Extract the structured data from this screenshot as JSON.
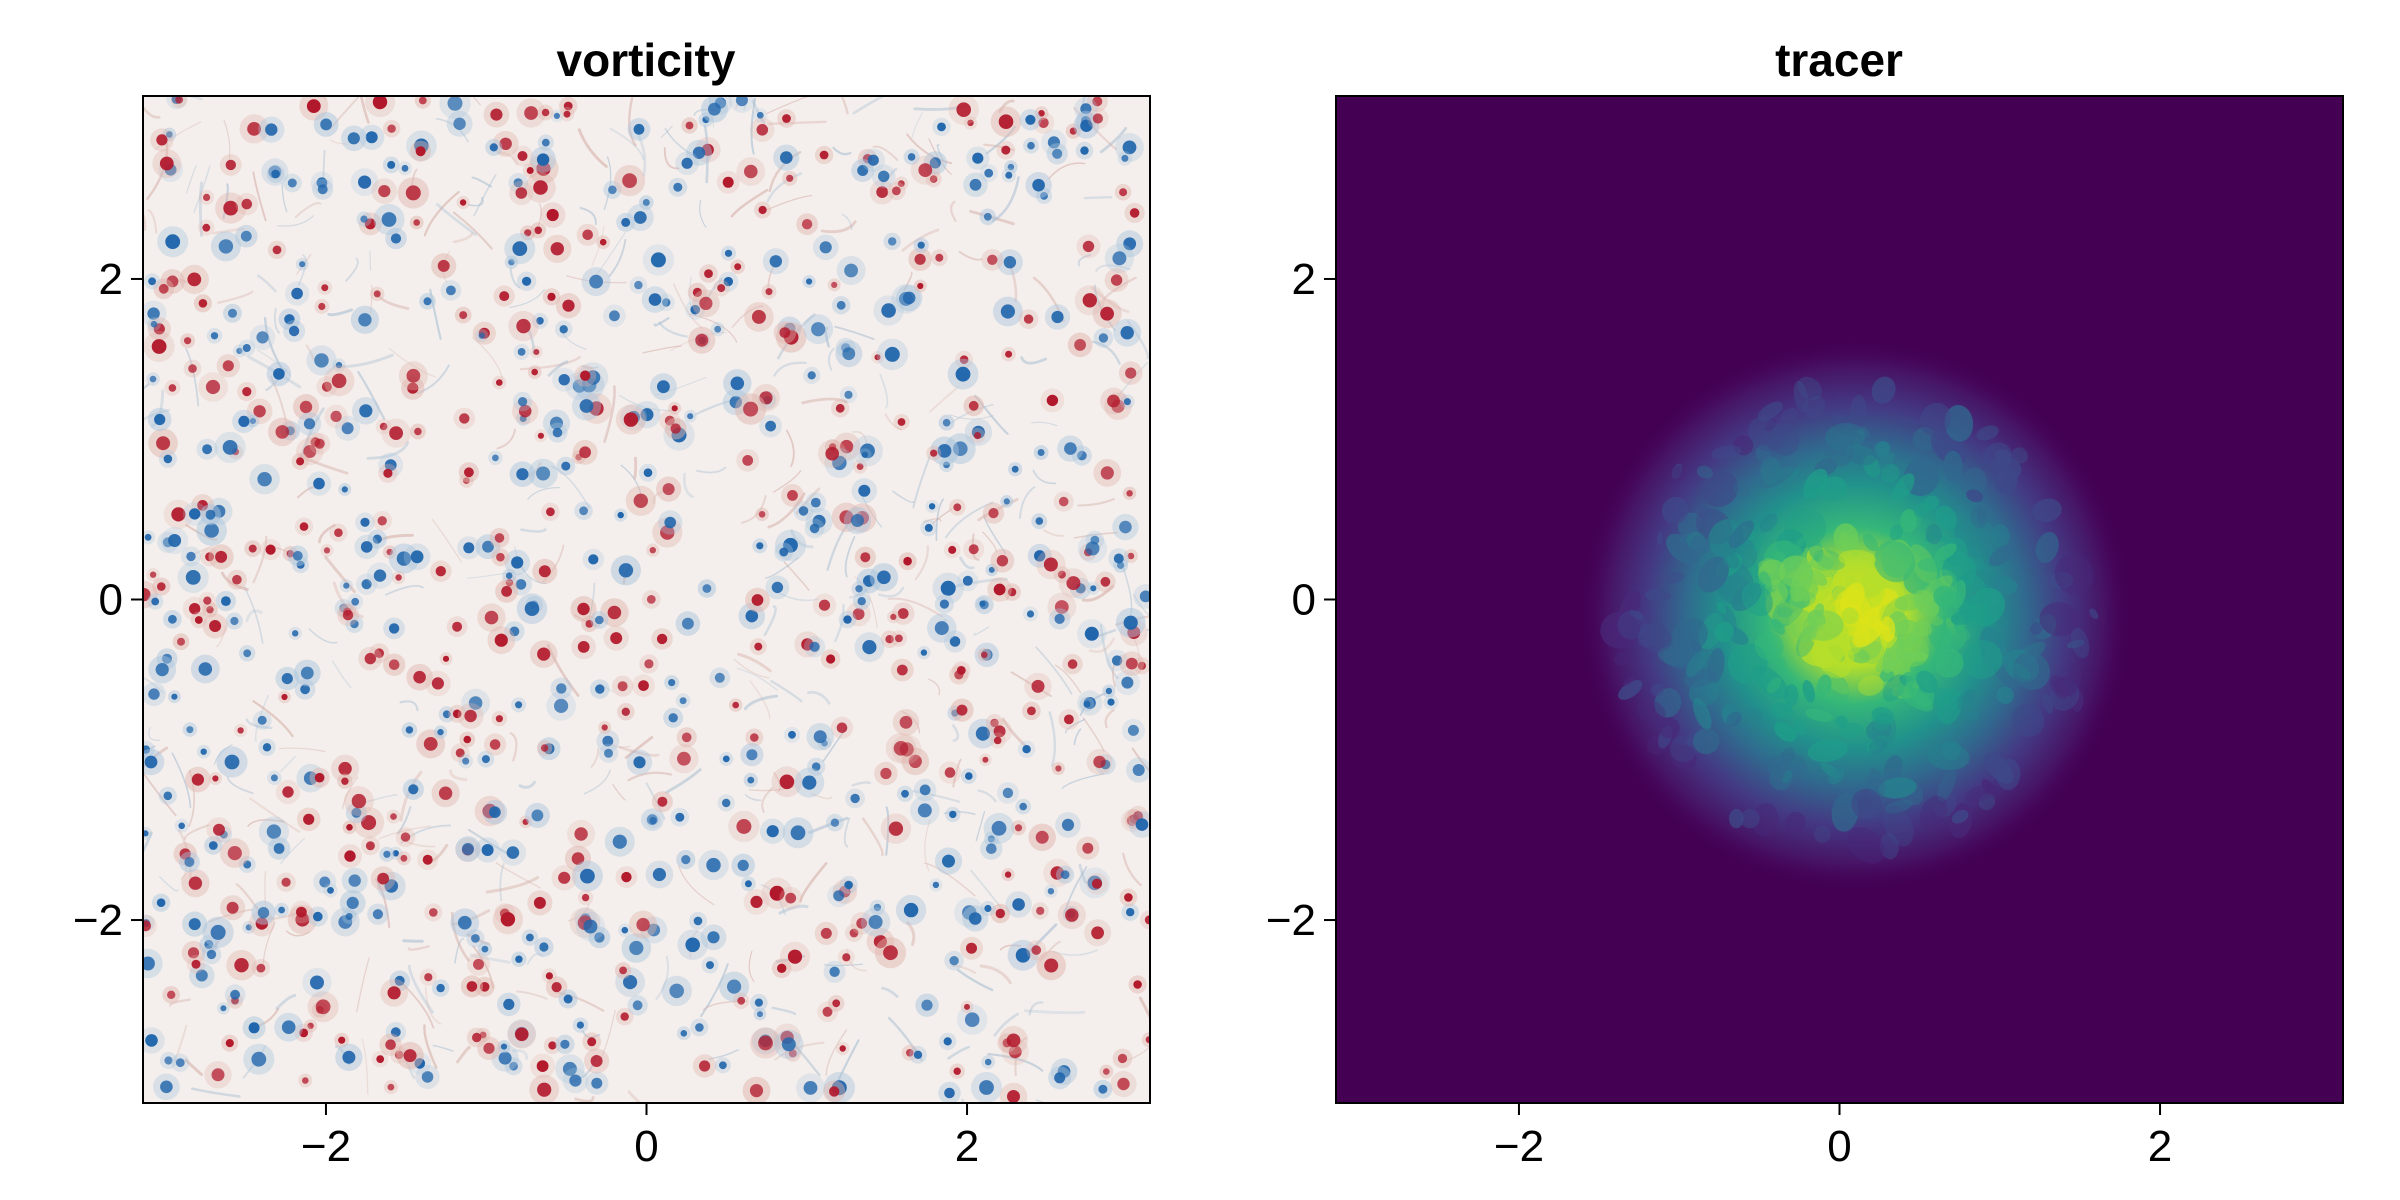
{
  "chart_data": [
    {
      "type": "heatmap",
      "title": "vorticity",
      "xlabel": "",
      "ylabel": "",
      "xlim": [
        -3.14159,
        3.14159
      ],
      "ylim": [
        -3.14159,
        3.14159
      ],
      "xticks": [
        -2,
        0,
        2
      ],
      "yticks": [
        -2,
        0,
        2
      ],
      "xtick_labels": [
        "−2",
        "0",
        "2"
      ],
      "ytick_labels": [
        "−2",
        "0",
        "2"
      ],
      "colormap": "balance (diverging blue-white-red)",
      "colors": {
        "negative": "#2166ac",
        "zero": "#f4efec",
        "positive": "#b2182b"
      },
      "field_description": "turbulent 2D vorticity field with many small coherent vortices of both signs",
      "grid": false
    },
    {
      "type": "heatmap",
      "title": "tracer",
      "xlabel": "",
      "ylabel": "",
      "xlim": [
        -3.14159,
        3.14159
      ],
      "ylim": [
        -3.14159,
        3.14159
      ],
      "xticks": [
        -2,
        0,
        2
      ],
      "yticks": [
        -2,
        0,
        2
      ],
      "xtick_labels": [
        "−2",
        "0",
        "2"
      ],
      "ytick_labels": [
        "−2",
        "0",
        "2"
      ],
      "colormap": "viridis",
      "colors": {
        "low": "#440154",
        "mid": "#21918c",
        "high": "#fde725"
      },
      "field_description": "passive tracer blob centred near the origin, stirred by turbulence",
      "tracer_center": [
        0.1,
        -0.1
      ],
      "tracer_radius_approx": 1.5,
      "grid": false
    }
  ]
}
